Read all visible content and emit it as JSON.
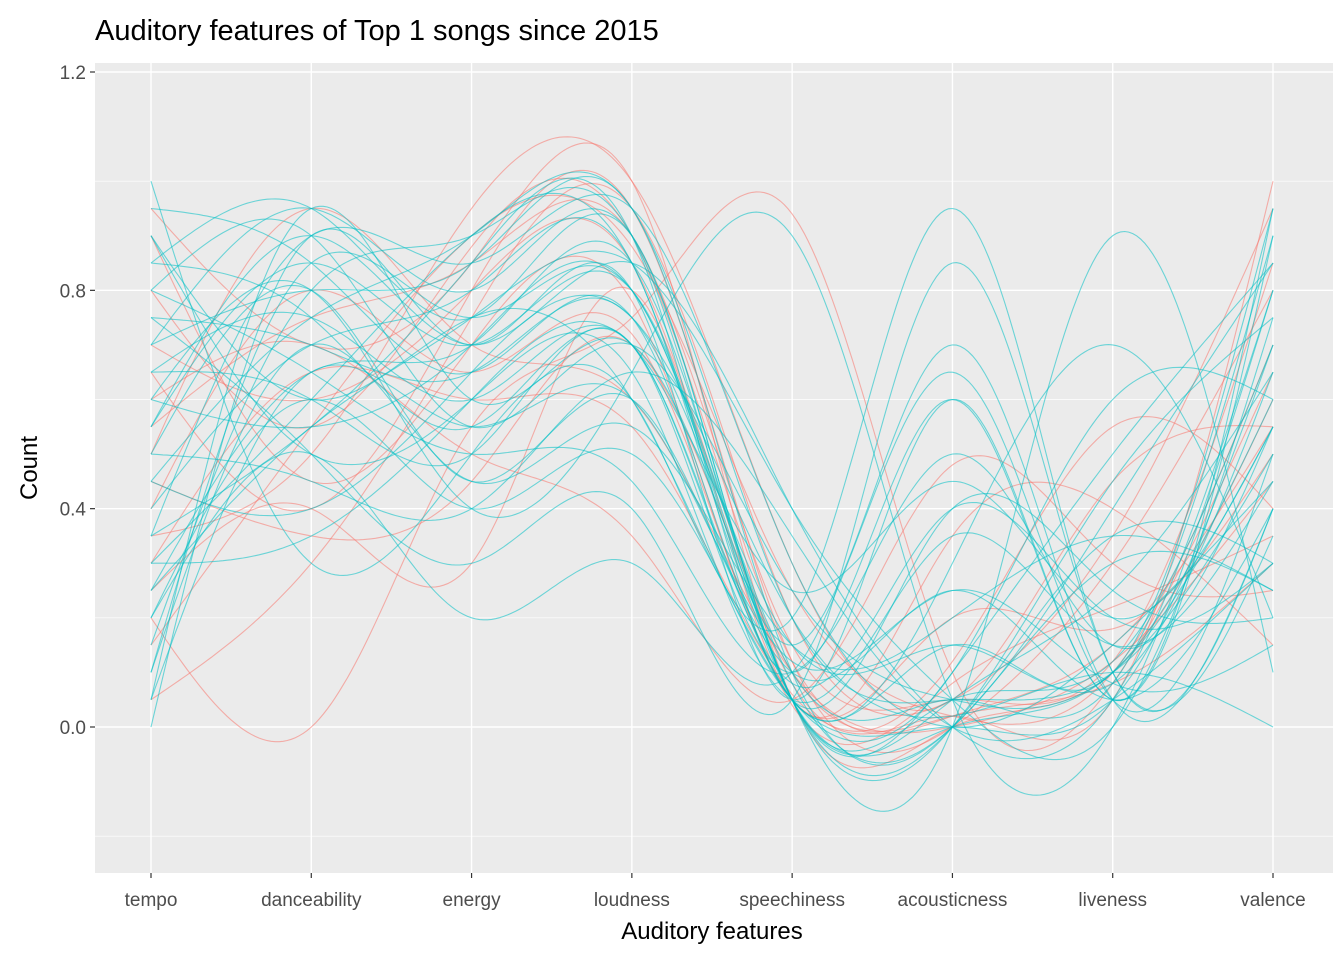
{
  "chart_data": {
    "type": "line",
    "subtype": "parallel-coordinates (smoothed curves)",
    "title": "Auditory features of Top 1 songs since 2015",
    "xlabel": "Auditory features",
    "ylabel": "Count",
    "categories": [
      "tempo",
      "danceability",
      "energy",
      "loudness",
      "speechiness",
      "acousticness",
      "liveness",
      "valence"
    ],
    "ylim": [
      -0.27,
      1.22
    ],
    "yticks": [
      0.0,
      0.4,
      0.8,
      1.2
    ],
    "ytick_labels": [
      "0.0",
      "0.4",
      "0.8",
      "1.2"
    ],
    "grid": true,
    "legend": "none",
    "line_opacity": 0.55,
    "colors": {
      "group_a": "#F8766D",
      "group_b": "#00BFC4",
      "panel_bg": "#EBEBEB",
      "grid": "#FFFFFF"
    },
    "series": [
      {
        "group": "group_a",
        "values": [
          0.95,
          0.7,
          0.85,
          1.0,
          0.05,
          0.0,
          0.1,
          0.6
        ]
      },
      {
        "group": "group_a",
        "values": [
          0.8,
          0.55,
          0.88,
          0.9,
          0.12,
          0.02,
          0.15,
          0.55
        ]
      },
      {
        "group": "group_a",
        "values": [
          0.05,
          0.3,
          0.75,
          0.95,
          0.2,
          0.05,
          0.35,
          0.95
        ]
      },
      {
        "group": "group_a",
        "values": [
          0.2,
          0.0,
          0.55,
          0.75,
          0.94,
          0.1,
          0.08,
          0.65
        ]
      },
      {
        "group": "group_a",
        "values": [
          0.5,
          0.95,
          0.7,
          0.6,
          0.1,
          0.0,
          0.12,
          0.45
        ]
      },
      {
        "group": "group_a",
        "values": [
          0.6,
          0.7,
          0.5,
          0.35,
          0.05,
          0.48,
          0.3,
          0.25
        ]
      },
      {
        "group": "group_a",
        "values": [
          0.35,
          0.5,
          0.95,
          1.0,
          0.3,
          0.05,
          0.45,
          0.55
        ]
      },
      {
        "group": "group_a",
        "values": [
          0.25,
          0.4,
          0.3,
          0.8,
          0.05,
          0.35,
          0.4,
          0.15
        ]
      },
      {
        "group": "group_a",
        "values": [
          0.7,
          0.6,
          0.8,
          0.85,
          0.08,
          0.02,
          0.05,
          1.0
        ]
      },
      {
        "group": "group_a",
        "values": [
          0.45,
          0.35,
          0.45,
          0.7,
          0.1,
          0.02,
          0.08,
          0.3
        ]
      },
      {
        "group": "group_a",
        "values": [
          0.55,
          0.75,
          0.85,
          0.9,
          0.15,
          0.05,
          0.12,
          0.85
        ]
      },
      {
        "group": "group_a",
        "values": [
          0.3,
          0.65,
          0.6,
          0.55,
          0.06,
          0.12,
          0.55,
          0.4
        ]
      },
      {
        "group": "group_a",
        "values": [
          0.9,
          0.45,
          0.7,
          0.78,
          0.05,
          0.2,
          0.18,
          0.5
        ]
      },
      {
        "group": "group_a",
        "values": [
          0.15,
          0.55,
          0.9,
          0.88,
          0.25,
          0.02,
          0.1,
          0.7
        ]
      },
      {
        "group": "group_a",
        "values": [
          0.4,
          0.8,
          0.65,
          0.72,
          0.04,
          0.08,
          0.22,
          0.35
        ]
      },
      {
        "group": "group_a",
        "values": [
          0.65,
          0.4,
          0.8,
          0.95,
          0.12,
          0.0,
          0.3,
          0.8
        ]
      },
      {
        "group": "group_b",
        "values": [
          0.0,
          0.9,
          0.7,
          0.8,
          0.05,
          0.6,
          0.05,
          0.95
        ]
      },
      {
        "group": "group_b",
        "values": [
          1.0,
          0.3,
          0.5,
          0.6,
          0.2,
          0.95,
          0.1,
          0.4
        ]
      },
      {
        "group": "group_b",
        "values": [
          0.05,
          0.95,
          0.6,
          0.7,
          0.05,
          0.0,
          0.9,
          0.1
        ]
      },
      {
        "group": "group_b",
        "values": [
          0.6,
          0.8,
          0.4,
          0.65,
          0.9,
          0.05,
          0.0,
          0.8
        ]
      },
      {
        "group": "group_b",
        "values": [
          0.3,
          0.6,
          0.9,
          0.85,
          0.05,
          0.0,
          0.1,
          0.6
        ]
      },
      {
        "group": "group_b",
        "values": [
          0.85,
          0.75,
          0.55,
          0.7,
          0.08,
          0.4,
          0.2,
          0.3
        ]
      },
      {
        "group": "group_b",
        "values": [
          0.2,
          0.5,
          0.2,
          0.3,
          0.1,
          0.65,
          0.05,
          0.5
        ]
      },
      {
        "group": "group_b",
        "values": [
          0.7,
          0.95,
          0.8,
          0.9,
          0.05,
          0.1,
          0.5,
          0.85
        ]
      },
      {
        "group": "group_b",
        "values": [
          0.45,
          0.4,
          0.65,
          0.75,
          0.2,
          0.02,
          0.1,
          0.0
        ]
      },
      {
        "group": "group_b",
        "values": [
          0.9,
          0.6,
          0.75,
          0.6,
          0.05,
          0.0,
          0.05,
          0.7
        ]
      },
      {
        "group": "group_b",
        "values": [
          0.1,
          0.7,
          0.45,
          0.55,
          0.15,
          0.2,
          0.35,
          0.25
        ]
      },
      {
        "group": "group_b",
        "values": [
          0.55,
          0.85,
          0.7,
          0.8,
          0.1,
          0.05,
          0.08,
          0.9
        ]
      },
      {
        "group": "group_b",
        "values": [
          0.75,
          0.5,
          0.3,
          0.4,
          0.05,
          0.85,
          0.1,
          0.35
        ]
      },
      {
        "group": "group_b",
        "values": [
          0.35,
          0.9,
          0.85,
          0.95,
          0.3,
          0.0,
          0.15,
          0.45
        ]
      },
      {
        "group": "group_b",
        "values": [
          0.65,
          0.75,
          0.6,
          0.7,
          0.05,
          0.3,
          0.7,
          0.2
        ]
      },
      {
        "group": "group_b",
        "values": [
          0.25,
          0.55,
          0.75,
          0.85,
          0.4,
          0.05,
          0.0,
          0.75
        ]
      },
      {
        "group": "group_b",
        "values": [
          0.8,
          0.65,
          0.5,
          0.45,
          0.1,
          0.5,
          0.15,
          0.55
        ]
      },
      {
        "group": "group_b",
        "values": [
          0.15,
          0.8,
          0.9,
          0.9,
          0.05,
          0.05,
          0.25,
          0.65
        ]
      },
      {
        "group": "group_b",
        "values": [
          0.5,
          0.45,
          0.4,
          0.65,
          0.35,
          0.0,
          0.05,
          0.3
        ]
      },
      {
        "group": "group_b",
        "values": [
          0.95,
          0.85,
          0.65,
          0.75,
          0.05,
          0.15,
          0.1,
          0.95
        ]
      },
      {
        "group": "group_b",
        "values": [
          0.4,
          0.7,
          0.8,
          0.85,
          0.15,
          0.7,
          0.05,
          0.4
        ]
      },
      {
        "group": "group_b",
        "values": [
          0.6,
          0.55,
          0.7,
          0.8,
          0.08,
          0.0,
          0.4,
          0.85
        ]
      },
      {
        "group": "group_b",
        "values": [
          0.05,
          0.65,
          0.55,
          0.6,
          0.12,
          0.25,
          0.08,
          0.15
        ]
      },
      {
        "group": "group_b",
        "values": [
          0.85,
          0.95,
          0.75,
          0.9,
          0.05,
          0.05,
          0.12,
          0.7
        ]
      },
      {
        "group": "group_b",
        "values": [
          0.3,
          0.35,
          0.6,
          0.7,
          0.25,
          0.45,
          0.2,
          0.55
        ]
      },
      {
        "group": "group_b",
        "values": [
          0.7,
          0.8,
          0.85,
          0.95,
          0.1,
          0.0,
          0.3,
          0.25
        ]
      },
      {
        "group": "group_b",
        "values": [
          0.2,
          0.6,
          0.4,
          0.5,
          0.05,
          0.1,
          0.6,
          0.6
        ]
      },
      {
        "group": "group_b",
        "values": [
          0.55,
          0.9,
          0.7,
          0.85,
          0.4,
          0.0,
          0.05,
          0.8
        ]
      },
      {
        "group": "group_b",
        "values": [
          0.9,
          0.5,
          0.6,
          0.65,
          0.05,
          0.35,
          0.15,
          0.45
        ]
      },
      {
        "group": "group_b",
        "values": [
          0.45,
          0.75,
          0.9,
          0.95,
          0.2,
          0.05,
          0.1,
          0.5
        ]
      },
      {
        "group": "group_b",
        "values": [
          0.65,
          0.6,
          0.5,
          0.7,
          0.1,
          0.6,
          0.05,
          0.9
        ]
      },
      {
        "group": "group_b",
        "values": [
          0.1,
          0.85,
          0.75,
          0.8,
          0.05,
          0.0,
          0.35,
          0.3
        ]
      },
      {
        "group": "group_b",
        "values": [
          0.75,
          0.7,
          0.65,
          0.75,
          0.15,
          0.15,
          0.08,
          0.65
        ]
      },
      {
        "group": "group_b",
        "values": [
          0.35,
          0.55,
          0.85,
          0.9,
          0.05,
          0.4,
          0.25,
          0.2
        ]
      },
      {
        "group": "group_b",
        "values": [
          0.8,
          0.9,
          0.55,
          0.7,
          0.25,
          0.05,
          0.1,
          0.55
        ]
      },
      {
        "group": "group_b",
        "values": [
          0.25,
          0.65,
          0.7,
          0.85,
          0.05,
          0.0,
          0.45,
          0.75
        ]
      },
      {
        "group": "group_b",
        "values": [
          0.5,
          0.8,
          0.45,
          0.6,
          0.1,
          0.25,
          0.05,
          0.4
        ]
      }
    ]
  }
}
